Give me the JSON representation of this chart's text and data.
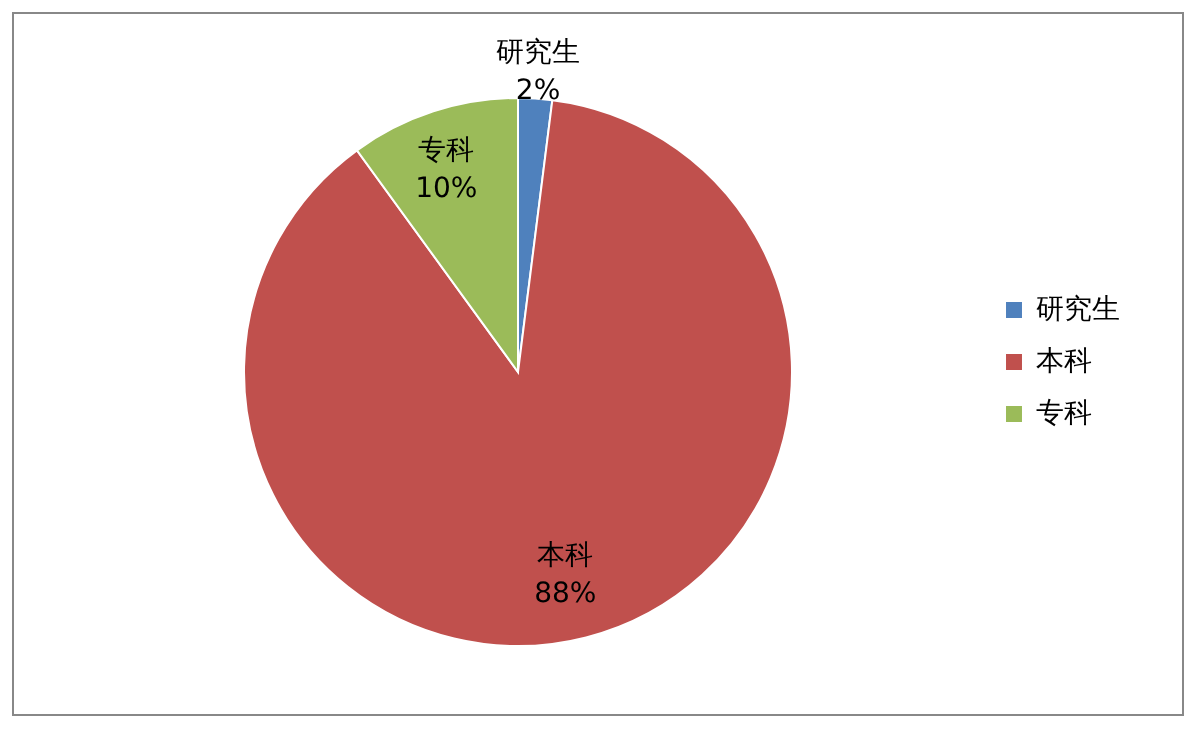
{
  "chart_data": {
    "type": "pie",
    "categories": [
      "研究生",
      "本科",
      "专科"
    ],
    "values": [
      2,
      88,
      10
    ],
    "colors": [
      "#4f81bd",
      "#c0504d",
      "#9bbb59"
    ],
    "value_labels": [
      "2%",
      "88%",
      "10%"
    ],
    "legend": "right"
  }
}
